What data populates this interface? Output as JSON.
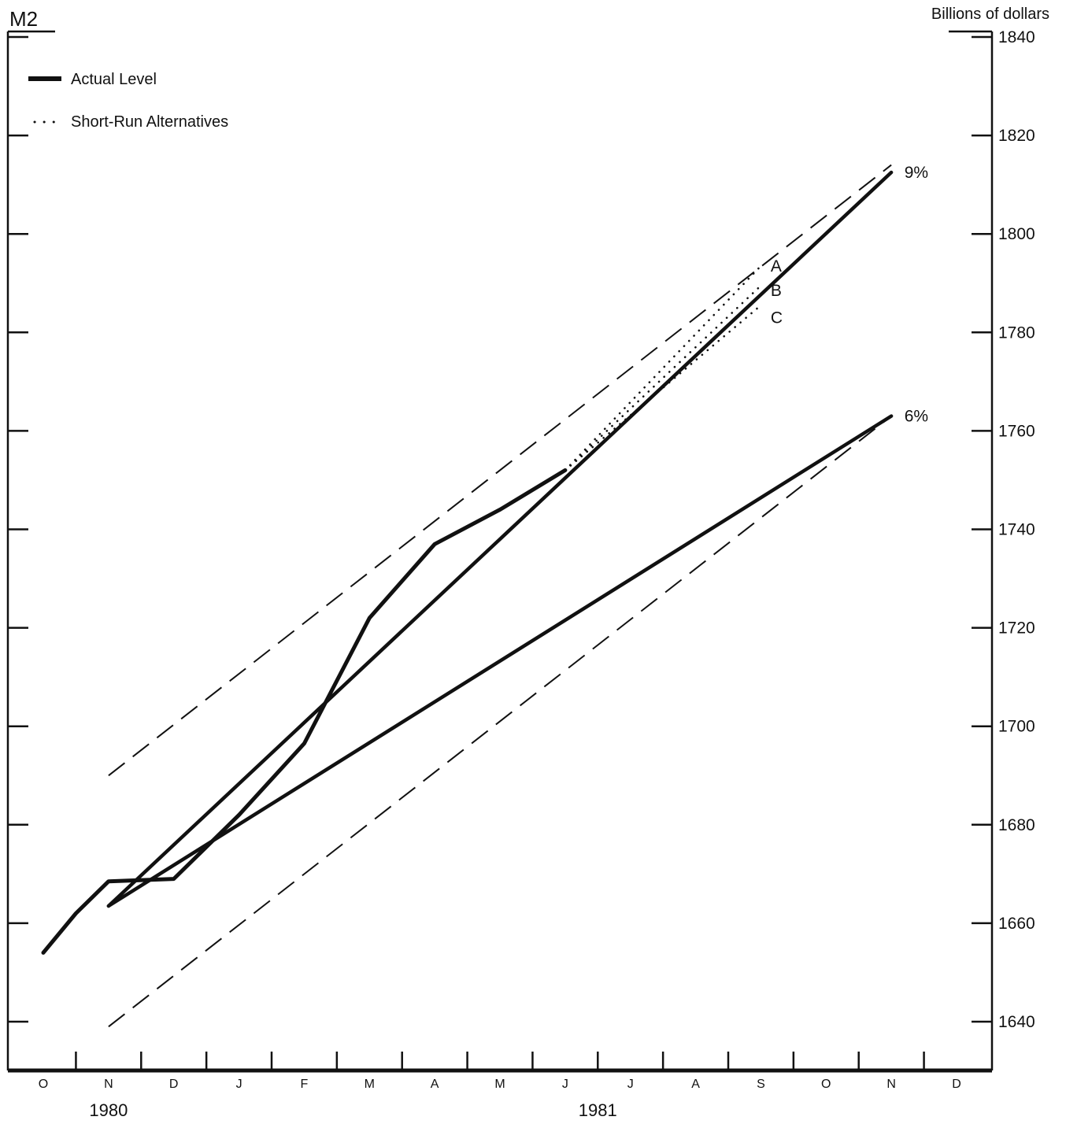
{
  "chart_data": {
    "type": "line",
    "title": "M2",
    "ylabel": "Billions of dollars",
    "ylim": [
      1630,
      1840
    ],
    "y_ticks": [
      1640,
      1660,
      1680,
      1700,
      1720,
      1740,
      1760,
      1780,
      1800,
      1820,
      1840
    ],
    "x_months": [
      "O",
      "N",
      "D",
      "J",
      "F",
      "M",
      "A",
      "M",
      "J",
      "J",
      "A",
      "S",
      "O",
      "N",
      "D"
    ],
    "years": [
      {
        "label": "1980",
        "month_index": 1
      },
      {
        "label": "1981",
        "month_index": 8.5
      }
    ],
    "legend": [
      {
        "label": "Actual Level",
        "style": "solid"
      },
      {
        "label": "Short-Run Alternatives",
        "style": "dotted"
      }
    ],
    "series": [
      {
        "name": "Actual Level",
        "style": "actual",
        "points": [
          [
            0,
            1654
          ],
          [
            0.5,
            1662
          ],
          [
            1,
            1668.5
          ],
          [
            2,
            1669
          ],
          [
            3,
            1682
          ],
          [
            4,
            1696.5
          ],
          [
            5,
            1722
          ],
          [
            6,
            1737
          ],
          [
            7,
            1744
          ],
          [
            8,
            1752
          ]
        ]
      },
      {
        "style": "cone-solid",
        "points": [
          [
            1,
            1663.5
          ],
          [
            13,
            1812.5
          ]
        ]
      },
      {
        "style": "cone-solid",
        "points": [
          [
            1,
            1663.5
          ],
          [
            13,
            1763
          ]
        ]
      },
      {
        "style": "band-dashed",
        "points": [
          [
            1,
            1690
          ],
          [
            13,
            1814
          ]
        ]
      },
      {
        "style": "band-dashed",
        "points": [
          [
            1,
            1639
          ],
          [
            13,
            1763
          ]
        ]
      },
      {
        "name": "A",
        "style": "dotted",
        "points": [
          [
            8,
            1752
          ],
          [
            11,
            1793.5
          ]
        ]
      },
      {
        "name": "B",
        "style": "dotted",
        "points": [
          [
            8,
            1752
          ],
          [
            11,
            1789.5
          ]
        ]
      },
      {
        "name": "C",
        "style": "dotted",
        "points": [
          [
            8,
            1752
          ],
          [
            11,
            1785.5
          ]
        ]
      }
    ],
    "annotations": [
      {
        "text": "9%",
        "x": 13.2,
        "y": 1812.5
      },
      {
        "text": "6%",
        "x": 13.2,
        "y": 1763
      },
      {
        "text": "A",
        "x": 11.15,
        "y": 1793.5
      },
      {
        "text": "B",
        "x": 11.15,
        "y": 1788.5
      },
      {
        "text": "C",
        "x": 11.15,
        "y": 1783
      }
    ],
    "grid": false,
    "legend_position": "top-left"
  }
}
